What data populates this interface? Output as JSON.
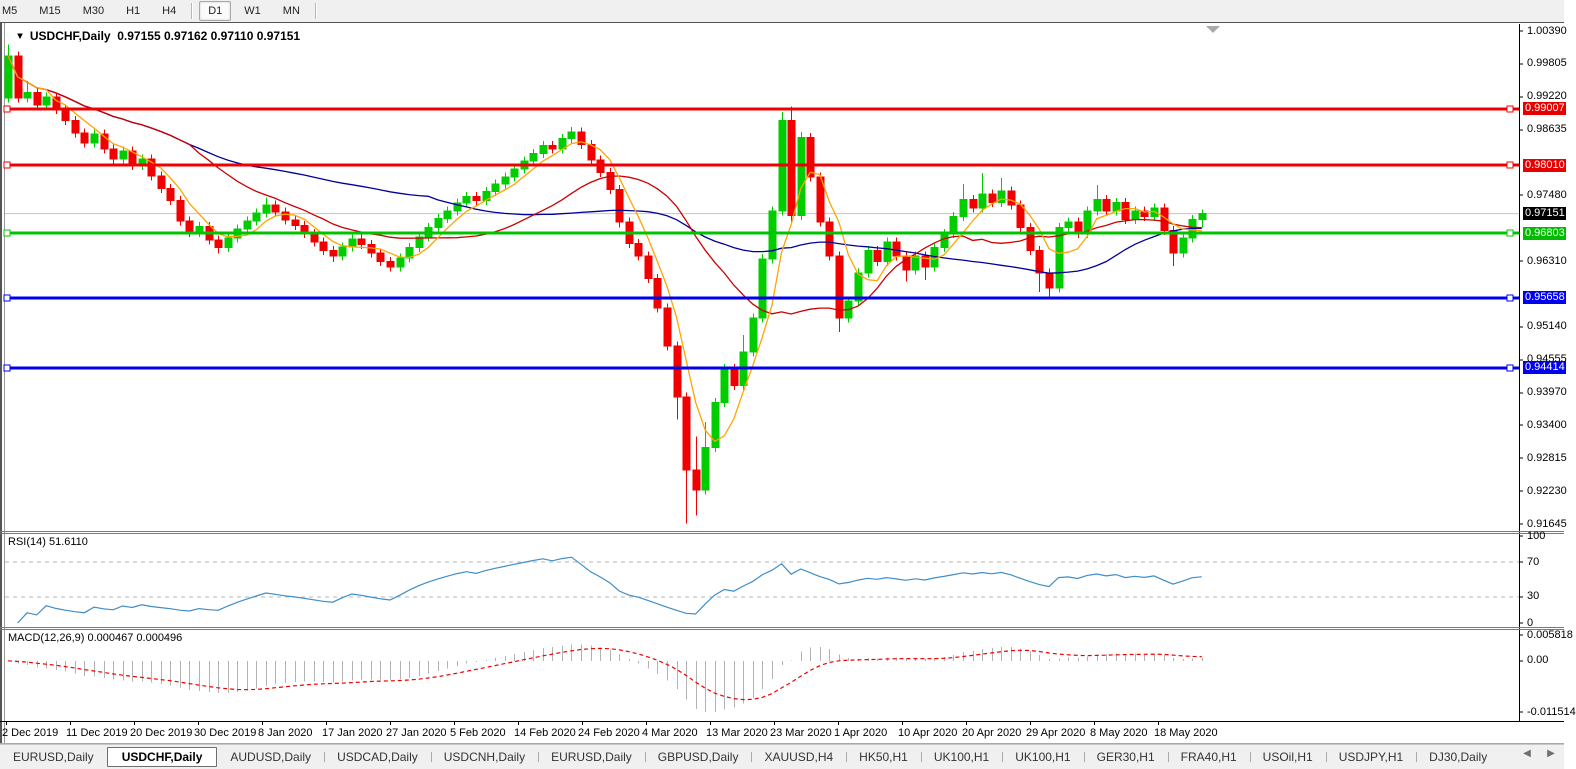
{
  "toolbar": {
    "timeframes": [
      "M5",
      "M15",
      "M30",
      "H1",
      "H4",
      "D1",
      "W1",
      "MN"
    ],
    "active": "D1"
  },
  "window": {
    "title_symbol": "USDCHF,Daily",
    "title_ohlc": "0.97155 0.97162 0.97110 0.97151"
  },
  "price_axis": {
    "tick_labels": [
      "1.00390",
      "0.99805",
      "0.99220",
      "0.98635",
      "0.97480",
      "0.96310",
      "0.95140",
      "0.94555",
      "0.93970",
      "0.93400",
      "0.92815",
      "0.92230",
      "0.91645"
    ],
    "badges": [
      {
        "text": "0.99007",
        "value": 0.99007,
        "bg": "#e60000"
      },
      {
        "text": "0.98010",
        "value": 0.9801,
        "bg": "#e60000"
      },
      {
        "text": "0.97151",
        "value": 0.97151,
        "bg": "#000000"
      },
      {
        "text": "0.96803",
        "value": 0.96803,
        "bg": "#00bb00"
      },
      {
        "text": "0.95658",
        "value": 0.95658,
        "bg": "#0000ee"
      },
      {
        "text": "0.94414",
        "value": 0.94414,
        "bg": "#0000ee"
      }
    ]
  },
  "indicators": {
    "rsi": {
      "label": "RSI(14) 51.6110",
      "period": 14,
      "value": "51.6110",
      "axis_labels": [
        "100",
        "70",
        "30",
        "0"
      ],
      "levels": [
        70,
        30
      ],
      "line_color": "#3E8EC9"
    },
    "macd": {
      "label": "MACD(12,26,9) 0.000467 0.000496",
      "fast": 12,
      "slow": 26,
      "signal": 9,
      "values": "0.000467 0.000496",
      "axis_labels": [
        "0.005818",
        "0.00",
        "-0.011514"
      ],
      "ylim": [
        -0.011514,
        0.005818
      ]
    }
  },
  "date_axis": {
    "labels": [
      "2 Dec 2019",
      "11 Dec 2019",
      "20 Dec 2019",
      "30 Dec 2019",
      "8 Jan 2020",
      "17 Jan 2020",
      "27 Jan 2020",
      "5 Feb 2020",
      "14 Feb 2020",
      "24 Feb 2020",
      "4 Mar 2020",
      "13 Mar 2020",
      "23 Mar 2020",
      "1 Apr 2020",
      "10 Apr 2020",
      "20 Apr 2020",
      "29 Apr 2020",
      "8 May 2020",
      "18 May 2020"
    ]
  },
  "tabs": {
    "items": [
      "EURUSD,Daily",
      "USDCHF,Daily",
      "AUDUSD,Daily",
      "USDCAD,Daily",
      "USDCNH,Daily",
      "EURUSD,Daily",
      "GBPUSD,Daily",
      "XAUUSD,H4",
      "HK50,H1",
      "UK100,H1",
      "UK100,H1",
      "GER30,H1",
      "FRA40,H1",
      "USOil,H1",
      "USDJPY,H1",
      "DJ30,Daily"
    ],
    "active_index": 1
  },
  "chart_data": {
    "type": "candlestick",
    "symbol": "USDCHF",
    "timeframe": "Daily",
    "title": "USDCHF,Daily",
    "ylim": [
      0.91645,
      1.0039
    ],
    "y_tick_step": 0.00585,
    "current_price": 0.97151,
    "open": [
      0.992,
      0.9995,
      0.992,
      0.993,
      0.9908,
      0.9922,
      0.99,
      0.988,
      0.9858,
      0.984,
      0.9856,
      0.983,
      0.9812,
      0.9826,
      0.98,
      0.9812,
      0.9782,
      0.976,
      0.9738,
      0.9702,
      0.9682,
      0.9692,
      0.9668,
      0.9655,
      0.9672,
      0.9688,
      0.9702,
      0.9716,
      0.973,
      0.9718,
      0.9704,
      0.9694,
      0.968,
      0.9665,
      0.965,
      0.964,
      0.9656,
      0.967,
      0.966,
      0.9645,
      0.963,
      0.962,
      0.9636,
      0.9655,
      0.9674,
      0.969,
      0.9706,
      0.972,
      0.9734,
      0.9745,
      0.9738,
      0.9754,
      0.9768,
      0.978,
      0.9794,
      0.9808,
      0.9822,
      0.9836,
      0.983,
      0.9848,
      0.986,
      0.9838,
      0.981,
      0.9788,
      0.9758,
      0.97,
      0.9662,
      0.964,
      0.96,
      0.9548,
      0.948,
      0.939,
      0.926,
      0.9225,
      0.93,
      0.938,
      0.944,
      0.941,
      0.947,
      0.953,
      0.9635,
      0.972,
      0.988,
      0.9712,
      0.985,
      0.978,
      0.97,
      0.964,
      0.953,
      0.956,
      0.961,
      0.965,
      0.963,
      0.9665,
      0.964,
      0.9615,
      0.964,
      0.962,
      0.9655,
      0.968,
      0.971,
      0.974,
      0.9725,
      0.975,
      0.9735,
      0.9755,
      0.973,
      0.969,
      0.965,
      0.961,
      0.9583,
      0.969,
      0.97,
      0.968,
      0.972,
      0.974,
      0.972,
      0.9735,
      0.9705,
      0.972,
      0.971,
      0.9725,
      0.9685,
      0.9645,
      0.9672,
      0.9705
    ],
    "high": [
      1.0015,
      1.0003,
      0.995,
      0.9938,
      0.993,
      0.993,
      0.9908,
      0.9888,
      0.9866,
      0.9864,
      0.9864,
      0.9838,
      0.9834,
      0.9834,
      0.982,
      0.982,
      0.979,
      0.9768,
      0.9746,
      0.971,
      0.97,
      0.97,
      0.9676,
      0.968,
      0.9696,
      0.971,
      0.9724,
      0.9744,
      0.9738,
      0.9726,
      0.9712,
      0.9702,
      0.9688,
      0.9673,
      0.9658,
      0.9664,
      0.9678,
      0.9678,
      0.9668,
      0.9653,
      0.9638,
      0.9644,
      0.9663,
      0.9682,
      0.9698,
      0.9714,
      0.9728,
      0.9742,
      0.9753,
      0.9753,
      0.9762,
      0.9776,
      0.9788,
      0.9803,
      0.9816,
      0.983,
      0.9844,
      0.9844,
      0.9856,
      0.9869,
      0.9868,
      0.9846,
      0.9818,
      0.9796,
      0.9766,
      0.9708,
      0.967,
      0.9648,
      0.9608,
      0.9556,
      0.9488,
      0.9398,
      0.932,
      0.9345,
      0.9388,
      0.9448,
      0.9448,
      0.95,
      0.9538,
      0.9643,
      0.9728,
      0.9895,
      0.9905,
      0.986,
      0.9858,
      0.9788,
      0.9708,
      0.9648,
      0.9568,
      0.9618,
      0.9658,
      0.9658,
      0.9673,
      0.9673,
      0.9648,
      0.9648,
      0.9648,
      0.9663,
      0.9688,
      0.9718,
      0.9768,
      0.9748,
      0.9787,
      0.9758,
      0.9778,
      0.9763,
      0.9738,
      0.9698,
      0.9658,
      0.9618,
      0.9698,
      0.9708,
      0.9708,
      0.9728,
      0.9766,
      0.9748,
      0.9743,
      0.9743,
      0.9728,
      0.9728,
      0.9733,
      0.9733,
      0.9693,
      0.968,
      0.9713,
      0.9722
    ],
    "low": [
      0.9912,
      0.9912,
      0.9912,
      0.99,
      0.99,
      0.9892,
      0.9872,
      0.985,
      0.9832,
      0.9832,
      0.9822,
      0.9804,
      0.9804,
      0.9792,
      0.9792,
      0.9774,
      0.9752,
      0.973,
      0.9694,
      0.9674,
      0.9674,
      0.966,
      0.9644,
      0.9647,
      0.9664,
      0.968,
      0.9694,
      0.9708,
      0.971,
      0.9696,
      0.9686,
      0.9672,
      0.9657,
      0.9642,
      0.9629,
      0.9632,
      0.9648,
      0.9652,
      0.9637,
      0.9622,
      0.9612,
      0.9612,
      0.9628,
      0.9647,
      0.9666,
      0.9682,
      0.9698,
      0.9712,
      0.9726,
      0.973,
      0.973,
      0.9746,
      0.976,
      0.9772,
      0.9786,
      0.98,
      0.9814,
      0.9822,
      0.9822,
      0.984,
      0.983,
      0.9802,
      0.978,
      0.975,
      0.969,
      0.9654,
      0.9632,
      0.9592,
      0.954,
      0.9472,
      0.935,
      0.9165,
      0.918,
      0.9217,
      0.9292,
      0.9372,
      0.9402,
      0.9402,
      0.9462,
      0.9522,
      0.9627,
      0.9712,
      0.97,
      0.9704,
      0.9772,
      0.9692,
      0.9632,
      0.9505,
      0.9522,
      0.9552,
      0.9602,
      0.9622,
      0.9622,
      0.9632,
      0.9595,
      0.9607,
      0.9597,
      0.9612,
      0.9647,
      0.9672,
      0.9702,
      0.9717,
      0.9717,
      0.9727,
      0.9727,
      0.9722,
      0.9682,
      0.9642,
      0.9576,
      0.9565,
      0.9575,
      0.9682,
      0.9672,
      0.9672,
      0.9712,
      0.9712,
      0.9712,
      0.9697,
      0.9697,
      0.9702,
      0.9702,
      0.9677,
      0.9622,
      0.9637,
      0.9664,
      0.969
    ],
    "close": [
      0.9995,
      0.992,
      0.993,
      0.9908,
      0.9922,
      0.99,
      0.988,
      0.9858,
      0.984,
      0.9856,
      0.983,
      0.9812,
      0.9826,
      0.98,
      0.9812,
      0.9782,
      0.976,
      0.9738,
      0.9702,
      0.9682,
      0.9692,
      0.9668,
      0.9655,
      0.9672,
      0.9688,
      0.9702,
      0.9716,
      0.973,
      0.9718,
      0.9704,
      0.9694,
      0.968,
      0.9665,
      0.965,
      0.964,
      0.9656,
      0.967,
      0.966,
      0.9645,
      0.963,
      0.962,
      0.9636,
      0.9655,
      0.9674,
      0.969,
      0.9706,
      0.972,
      0.9734,
      0.9745,
      0.9738,
      0.9754,
      0.9768,
      0.978,
      0.9794,
      0.9808,
      0.9822,
      0.9836,
      0.983,
      0.9848,
      0.986,
      0.9838,
      0.981,
      0.9788,
      0.9758,
      0.97,
      0.9662,
      0.964,
      0.96,
      0.9548,
      0.948,
      0.939,
      0.926,
      0.9225,
      0.93,
      0.938,
      0.944,
      0.941,
      0.947,
      0.953,
      0.9635,
      0.972,
      0.988,
      0.9712,
      0.985,
      0.978,
      0.97,
      0.964,
      0.953,
      0.956,
      0.961,
      0.965,
      0.963,
      0.9665,
      0.964,
      0.9615,
      0.964,
      0.962,
      0.9655,
      0.968,
      0.971,
      0.974,
      0.9725,
      0.975,
      0.9735,
      0.9755,
      0.973,
      0.969,
      0.965,
      0.961,
      0.9583,
      0.969,
      0.97,
      0.968,
      0.972,
      0.974,
      0.972,
      0.9735,
      0.9705,
      0.972,
      0.971,
      0.9725,
      0.9685,
      0.9645,
      0.9672,
      0.9705,
      0.9715
    ],
    "hlines": [
      {
        "value": 0.99007,
        "color": "#f00000",
        "type": "resistance"
      },
      {
        "value": 0.9801,
        "color": "#f00000",
        "type": "resistance"
      },
      {
        "value": 0.96803,
        "color": "#00c300",
        "type": "support"
      },
      {
        "value": 0.95658,
        "color": "#0000ee",
        "type": "support"
      },
      {
        "value": 0.94414,
        "color": "#0000ee",
        "type": "support"
      }
    ],
    "moving_averages": [
      {
        "period": 45,
        "color": "#000099",
        "name": "slow"
      },
      {
        "period": 20,
        "color": "#cc0000",
        "name": "mid"
      },
      {
        "period": 5,
        "color": "#ffa500",
        "name": "fast"
      }
    ],
    "colors": {
      "up": "#00cc00",
      "down": "#f20000",
      "current_price_line": "#c4c4c4",
      "macd_histogram": "#b2b2b2",
      "macd_signal": "#f20000",
      "rsi_line": "#3E8EC9"
    }
  }
}
